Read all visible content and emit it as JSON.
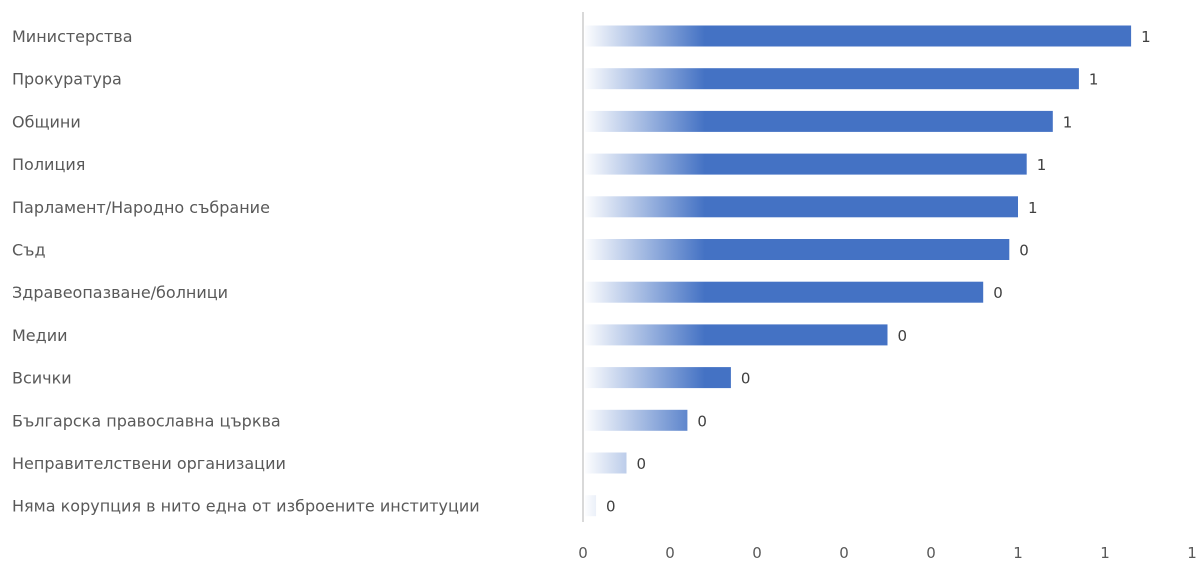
{
  "chart_data": {
    "type": "bar",
    "orientation": "horizontal",
    "categories": [
      "Министерства",
      "Прокуратура",
      "Общини",
      "Полиция",
      "Парламент/Народно събрание",
      "Съд",
      "Здравеопазване/болници",
      "Медии",
      "Всички",
      "Българска православна църква",
      "Неправителствени организации",
      "Няма корупция в нито една от изброените институции"
    ],
    "values": [
      0.63,
      0.57,
      0.54,
      0.51,
      0.5,
      0.49,
      0.46,
      0.35,
      0.17,
      0.12,
      0.05,
      0.015
    ],
    "data_labels": [
      "1",
      "1",
      "1",
      "1",
      "1",
      "0",
      "0",
      "0",
      "0",
      "0",
      "0",
      "0"
    ],
    "xlim": [
      0,
      0.7
    ],
    "x_ticks": [
      0,
      0.1,
      0.2,
      0.3,
      0.4,
      0.5,
      0.6,
      0.7
    ],
    "x_tick_labels": [
      "0",
      "0",
      "0",
      "0",
      "0",
      "1",
      "1",
      "1"
    ],
    "title": "",
    "xlabel": "",
    "ylabel": "",
    "grid": false,
    "legend": "none",
    "bar_color": "#4472C4",
    "bar_fade_color": "#FFFFFF",
    "axis_color": "#D9D9D9"
  }
}
